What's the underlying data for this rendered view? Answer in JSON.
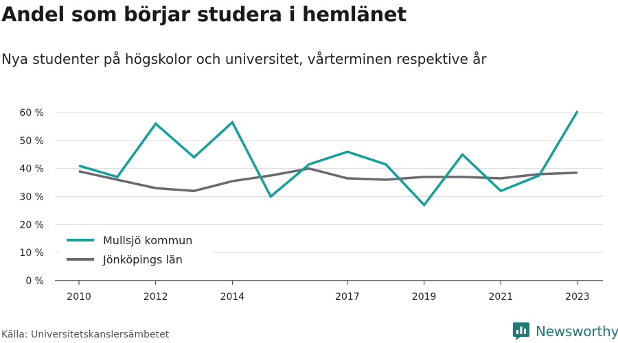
{
  "title": "Andel som börjar studera i hemlänet",
  "subtitle": "Nya studenter på högskolor och universitet, vårterminen respektive år",
  "source": "Källa: Universitetskanslersämbetet",
  "brand": {
    "name": "Newsworthy",
    "icon": "newsworthy-logo-icon",
    "color": "#1f7a75"
  },
  "chart_data": {
    "type": "line",
    "x": [
      2010,
      2011,
      2012,
      2013,
      2014,
      2015,
      2016,
      2017,
      2018,
      2019,
      2020,
      2021,
      2022,
      2023
    ],
    "xticks": [
      2010,
      2012,
      2014,
      2017,
      2019,
      2021,
      2023
    ],
    "ylim": [
      0,
      60
    ],
    "yticks": [
      0,
      10,
      20,
      30,
      40,
      50,
      60
    ],
    "ytick_labels": [
      "0 %",
      "10 %",
      "20 %",
      "30 %",
      "40 %",
      "50 %",
      "60 %"
    ],
    "grid": true,
    "legend": "bottom-left",
    "series": [
      {
        "name": "Mullsjö kommun",
        "color": "#13a199",
        "values": [
          41,
          37,
          56,
          44,
          56.5,
          30,
          41.5,
          46,
          41.5,
          27,
          45,
          32,
          37.5,
          60.5
        ]
      },
      {
        "name": "Jönköpings län",
        "color": "#6b6970",
        "values": [
          39,
          36,
          33,
          32,
          35.5,
          37.5,
          40,
          36.5,
          36,
          37,
          37,
          36.5,
          38,
          38.5
        ]
      }
    ]
  }
}
